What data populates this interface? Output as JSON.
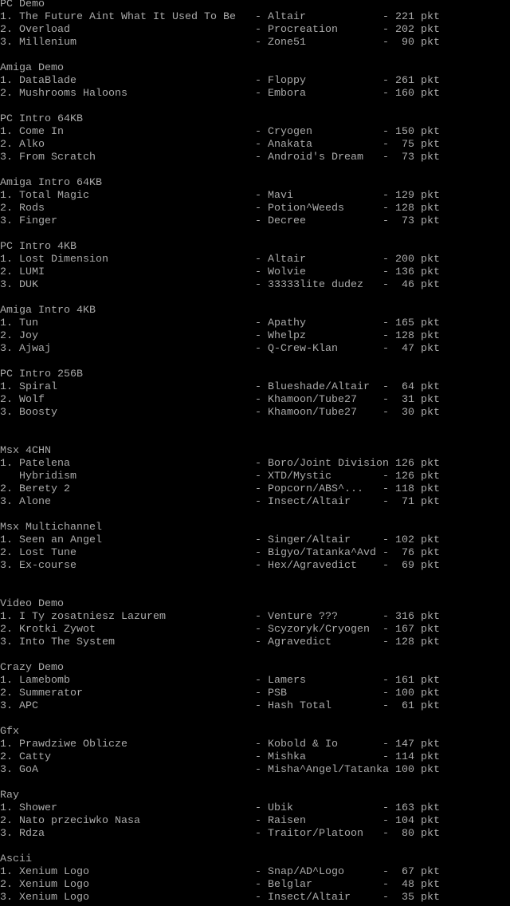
{
  "colors": {
    "background": "#000000",
    "text": "#aaaaaa"
  },
  "unit": "pkt",
  "sections": [
    {
      "title": "PC Demo",
      "entries": [
        {
          "rank": "1.",
          "title": "The Future Aint What It Used To Be",
          "author": "Altair",
          "points": "221"
        },
        {
          "rank": "2.",
          "title": "Overload",
          "author": "Procreation",
          "points": "202"
        },
        {
          "rank": "3.",
          "title": "Millenium",
          "author": "Zone51",
          "points": "90"
        }
      ]
    },
    {
      "title": "Amiga Demo",
      "entries": [
        {
          "rank": "1.",
          "title": "DataBlade",
          "author": "Floppy",
          "points": "261"
        },
        {
          "rank": "2.",
          "title": "Mushrooms Haloons",
          "author": "Embora",
          "points": "160"
        }
      ]
    },
    {
      "title": "PC Intro 64KB",
      "entries": [
        {
          "rank": "1.",
          "title": "Come In",
          "author": "Cryogen",
          "points": "150"
        },
        {
          "rank": "2.",
          "title": "Alko",
          "author": "Anakata",
          "points": "75"
        },
        {
          "rank": "3.",
          "title": "From Scratch",
          "author": "Android's Dream",
          "points": "73"
        }
      ]
    },
    {
      "title": "Amiga Intro 64KB",
      "entries": [
        {
          "rank": "1.",
          "title": "Total Magic",
          "author": "Mavi",
          "points": "129"
        },
        {
          "rank": "2.",
          "title": "Rods",
          "author": "Potion^Weeds",
          "points": "128"
        },
        {
          "rank": "3.",
          "title": "Finger",
          "author": "Decree",
          "points": "73"
        }
      ]
    },
    {
      "title": "PC Intro 4KB",
      "entries": [
        {
          "rank": "1.",
          "title": "Lost Dimension",
          "author": "Altair",
          "points": "200"
        },
        {
          "rank": "2.",
          "title": "LUMI",
          "author": "Wolvie",
          "points": "136"
        },
        {
          "rank": "3.",
          "title": "DUK",
          "author": "33333lite dudez",
          "points": "46"
        }
      ]
    },
    {
      "title": "Amiga Intro 4KB",
      "entries": [
        {
          "rank": "1.",
          "title": "Tun",
          "author": "Apathy",
          "points": "165"
        },
        {
          "rank": "2.",
          "title": "Joy",
          "author": "Whelpz",
          "points": "128"
        },
        {
          "rank": "3.",
          "title": "Ajwaj",
          "author": "Q-Crew-Klan",
          "points": "47"
        }
      ]
    },
    {
      "title": "PC Intro 256B",
      "entries": [
        {
          "rank": "1.",
          "title": "Spiral",
          "author": "Blueshade/Altair",
          "points": "64"
        },
        {
          "rank": "2.",
          "title": "Wolf",
          "author": "Khamoon/Tube27",
          "points": "31"
        },
        {
          "rank": "3.",
          "title": "Boosty",
          "author": "Khamoon/Tube27",
          "points": "30"
        }
      ]
    },
    {
      "title": "Msx 4CHN",
      "entries": [
        {
          "rank": "1.",
          "title": "Patelena",
          "author": "Boro/Joint Division",
          "points": "126"
        },
        {
          "rank": "",
          "title": "Hybridism",
          "author": "XTD/Mystic",
          "points": "126"
        },
        {
          "rank": "2.",
          "title": "Berety 2",
          "author": "Popcorn/ABS^...",
          "points": "118"
        },
        {
          "rank": "3.",
          "title": "Alone",
          "author": "Insect/Altair",
          "points": "71"
        }
      ]
    },
    {
      "title": "Msx Multichannel",
      "entries": [
        {
          "rank": "1.",
          "title": "Seen an Angel",
          "author": "Singer/Altair",
          "points": "102"
        },
        {
          "rank": "2.",
          "title": "Lost Tune",
          "author": "Bigyo/Tatanka^Avd",
          "points": "76"
        },
        {
          "rank": "3.",
          "title": "Ex-course",
          "author": "Hex/Agravedict",
          "points": "69"
        }
      ]
    },
    {
      "title": "Video Demo",
      "entries": [
        {
          "rank": "1.",
          "title": "I Ty zosatniesz Lazurem",
          "author": "Venture ???",
          "points": "316"
        },
        {
          "rank": "2.",
          "title": "Krotki Zywot",
          "author": "Scyzoryk/Cryogen",
          "points": "167"
        },
        {
          "rank": "3.",
          "title": "Into The System",
          "author": "Agravedict",
          "points": "128"
        }
      ]
    },
    {
      "title": "Crazy Demo",
      "entries": [
        {
          "rank": "1.",
          "title": "Lamebomb",
          "author": "Lamers",
          "points": "161"
        },
        {
          "rank": "2.",
          "title": "Summerator",
          "author": "PSB",
          "points": "100"
        },
        {
          "rank": "3.",
          "title": "APC",
          "author": "Hash Total",
          "points": "61"
        }
      ]
    },
    {
      "title": "Gfx",
      "entries": [
        {
          "rank": "1.",
          "title": "Prawdziwe Oblicze",
          "author": "Kobold & Io",
          "points": "147"
        },
        {
          "rank": "2.",
          "title": "Catty",
          "author": "Mishka",
          "points": "114"
        },
        {
          "rank": "3.",
          "title": "GoA",
          "author": "Misha^Angel/Tatanka",
          "points": "100"
        }
      ]
    },
    {
      "title": "Ray",
      "entries": [
        {
          "rank": "1.",
          "title": "Shower",
          "author": "Ubik",
          "points": "163"
        },
        {
          "rank": "2.",
          "title": "Nato przeciwko Nasa",
          "author": "Raisen",
          "points": "104"
        },
        {
          "rank": "3.",
          "title": "Rdza",
          "author": "Traitor/Platoon",
          "points": "80"
        }
      ]
    },
    {
      "title": "Ascii",
      "entries": [
        {
          "rank": "1.",
          "title": "Xenium Logo",
          "author": "Snap/AD^Logo",
          "points": "67"
        },
        {
          "rank": "2.",
          "title": "Xenium Logo",
          "author": "Belglar",
          "points": "48"
        },
        {
          "rank": "3.",
          "title": "Xenium Logo",
          "author": "Insect/Altair",
          "points": "35"
        }
      ]
    }
  ]
}
